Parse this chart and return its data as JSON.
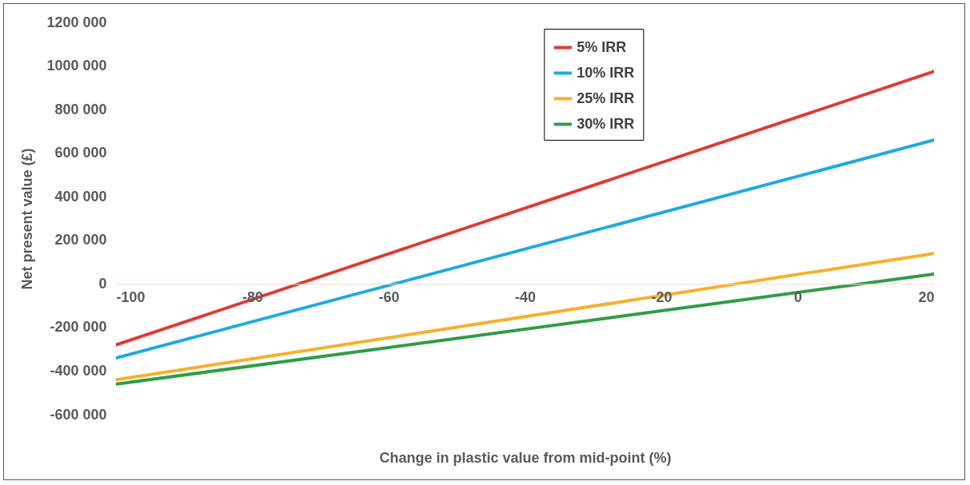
{
  "chart_data": {
    "type": "line",
    "xlabel": "Change in plastic value from mid-point (%)",
    "ylabel": "Net present value (£)",
    "x": [
      -100,
      20
    ],
    "series": [
      {
        "name": "5% IRR",
        "color": "#e03a33",
        "values": [
          -280000,
          975000
        ]
      },
      {
        "name": "10% IRR",
        "color": "#1eaade",
        "values": [
          -340000,
          660000
        ]
      },
      {
        "name": "25% IRR",
        "color": "#f6b02c",
        "values": [
          -440000,
          140000
        ]
      },
      {
        "name": "30% IRR",
        "color": "#2f9d45",
        "values": [
          -460000,
          45000
        ]
      }
    ],
    "xlim": [
      -100,
      20
    ],
    "xticks": [
      -100,
      -80,
      -60,
      -40,
      -20,
      0,
      20
    ],
    "ylim": [
      -600000,
      1200000
    ],
    "yticks": [
      {
        "value": -600000,
        "label": "-600 000"
      },
      {
        "value": -400000,
        "label": "-400 000"
      },
      {
        "value": -200000,
        "label": "-200 000"
      },
      {
        "value": 0,
        "label": "0"
      },
      {
        "value": 200000,
        "label": "200 000"
      },
      {
        "value": 400000,
        "label": "400 000"
      },
      {
        "value": 600000,
        "label": "600 000"
      },
      {
        "value": 800000,
        "label": "800 000"
      },
      {
        "value": 1000000,
        "label": "1000 000"
      },
      {
        "value": 1200000,
        "label": "1200 000"
      }
    ],
    "legend": "top right",
    "grid": false,
    "marker": "none",
    "line_style": "solid"
  }
}
